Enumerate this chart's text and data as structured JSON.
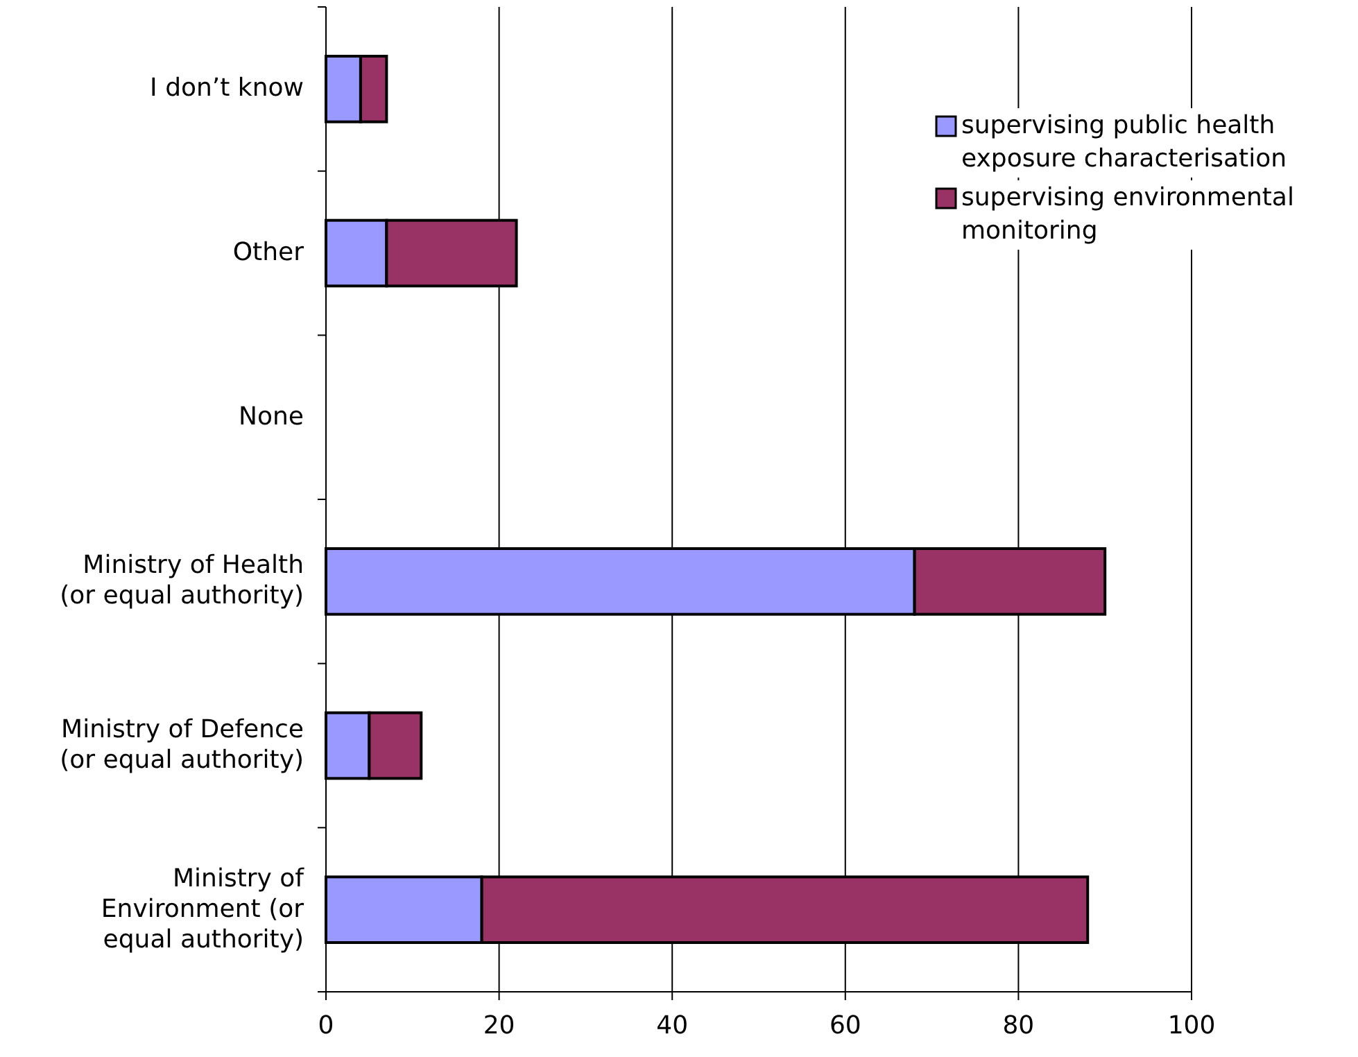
{
  "chart_data": {
    "type": "bar",
    "orientation": "horizontal",
    "stacked": true,
    "categories": [
      "I don’t know",
      "Other",
      "None",
      "Ministry of Health (or equal authority)",
      "Ministry of Defence (or equal authority)",
      "Ministry of Environment (or equal authority)"
    ],
    "series": [
      {
        "name": "supervising public health exposure characterisation",
        "color": "#9999ff",
        "values": [
          4,
          7,
          0,
          68,
          5,
          18
        ]
      },
      {
        "name": "supervising environmental monitoring",
        "color": "#993366",
        "values": [
          3,
          15,
          0,
          22,
          6,
          70
        ]
      }
    ],
    "xlim": [
      0,
      100
    ],
    "xticks": [
      0,
      20,
      40,
      60,
      80,
      100
    ],
    "grid": "x",
    "legend": "top right"
  }
}
